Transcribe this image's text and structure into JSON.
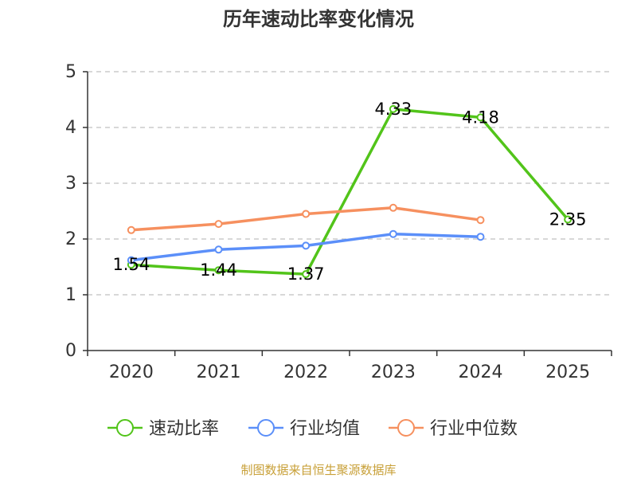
{
  "chart_data": {
    "type": "line",
    "title": "历年速动比率变化情况",
    "categories": [
      "2020",
      "2021",
      "2022",
      "2023",
      "2024",
      "2025"
    ],
    "ylim": [
      0,
      5
    ],
    "yticks": [
      "0",
      "1",
      "2",
      "3",
      "4",
      "5"
    ],
    "grid": "horizontal dashed",
    "legend_position": "bottom",
    "series": [
      {
        "name": "速动比率",
        "color": "#52c41a",
        "show_labels": true,
        "values": [
          1.54,
          1.44,
          1.37,
          4.33,
          4.18,
          2.35
        ]
      },
      {
        "name": "行业均值",
        "color": "#5b8ff9",
        "show_labels": false,
        "values": [
          1.62,
          1.81,
          1.88,
          2.09,
          2.04,
          null
        ]
      },
      {
        "name": "行业中位数",
        "color": "#f6905f",
        "show_labels": false,
        "values": [
          2.16,
          2.27,
          2.45,
          2.56,
          2.34,
          null
        ]
      }
    ]
  },
  "source": "制图数据来自恒生聚源数据库"
}
